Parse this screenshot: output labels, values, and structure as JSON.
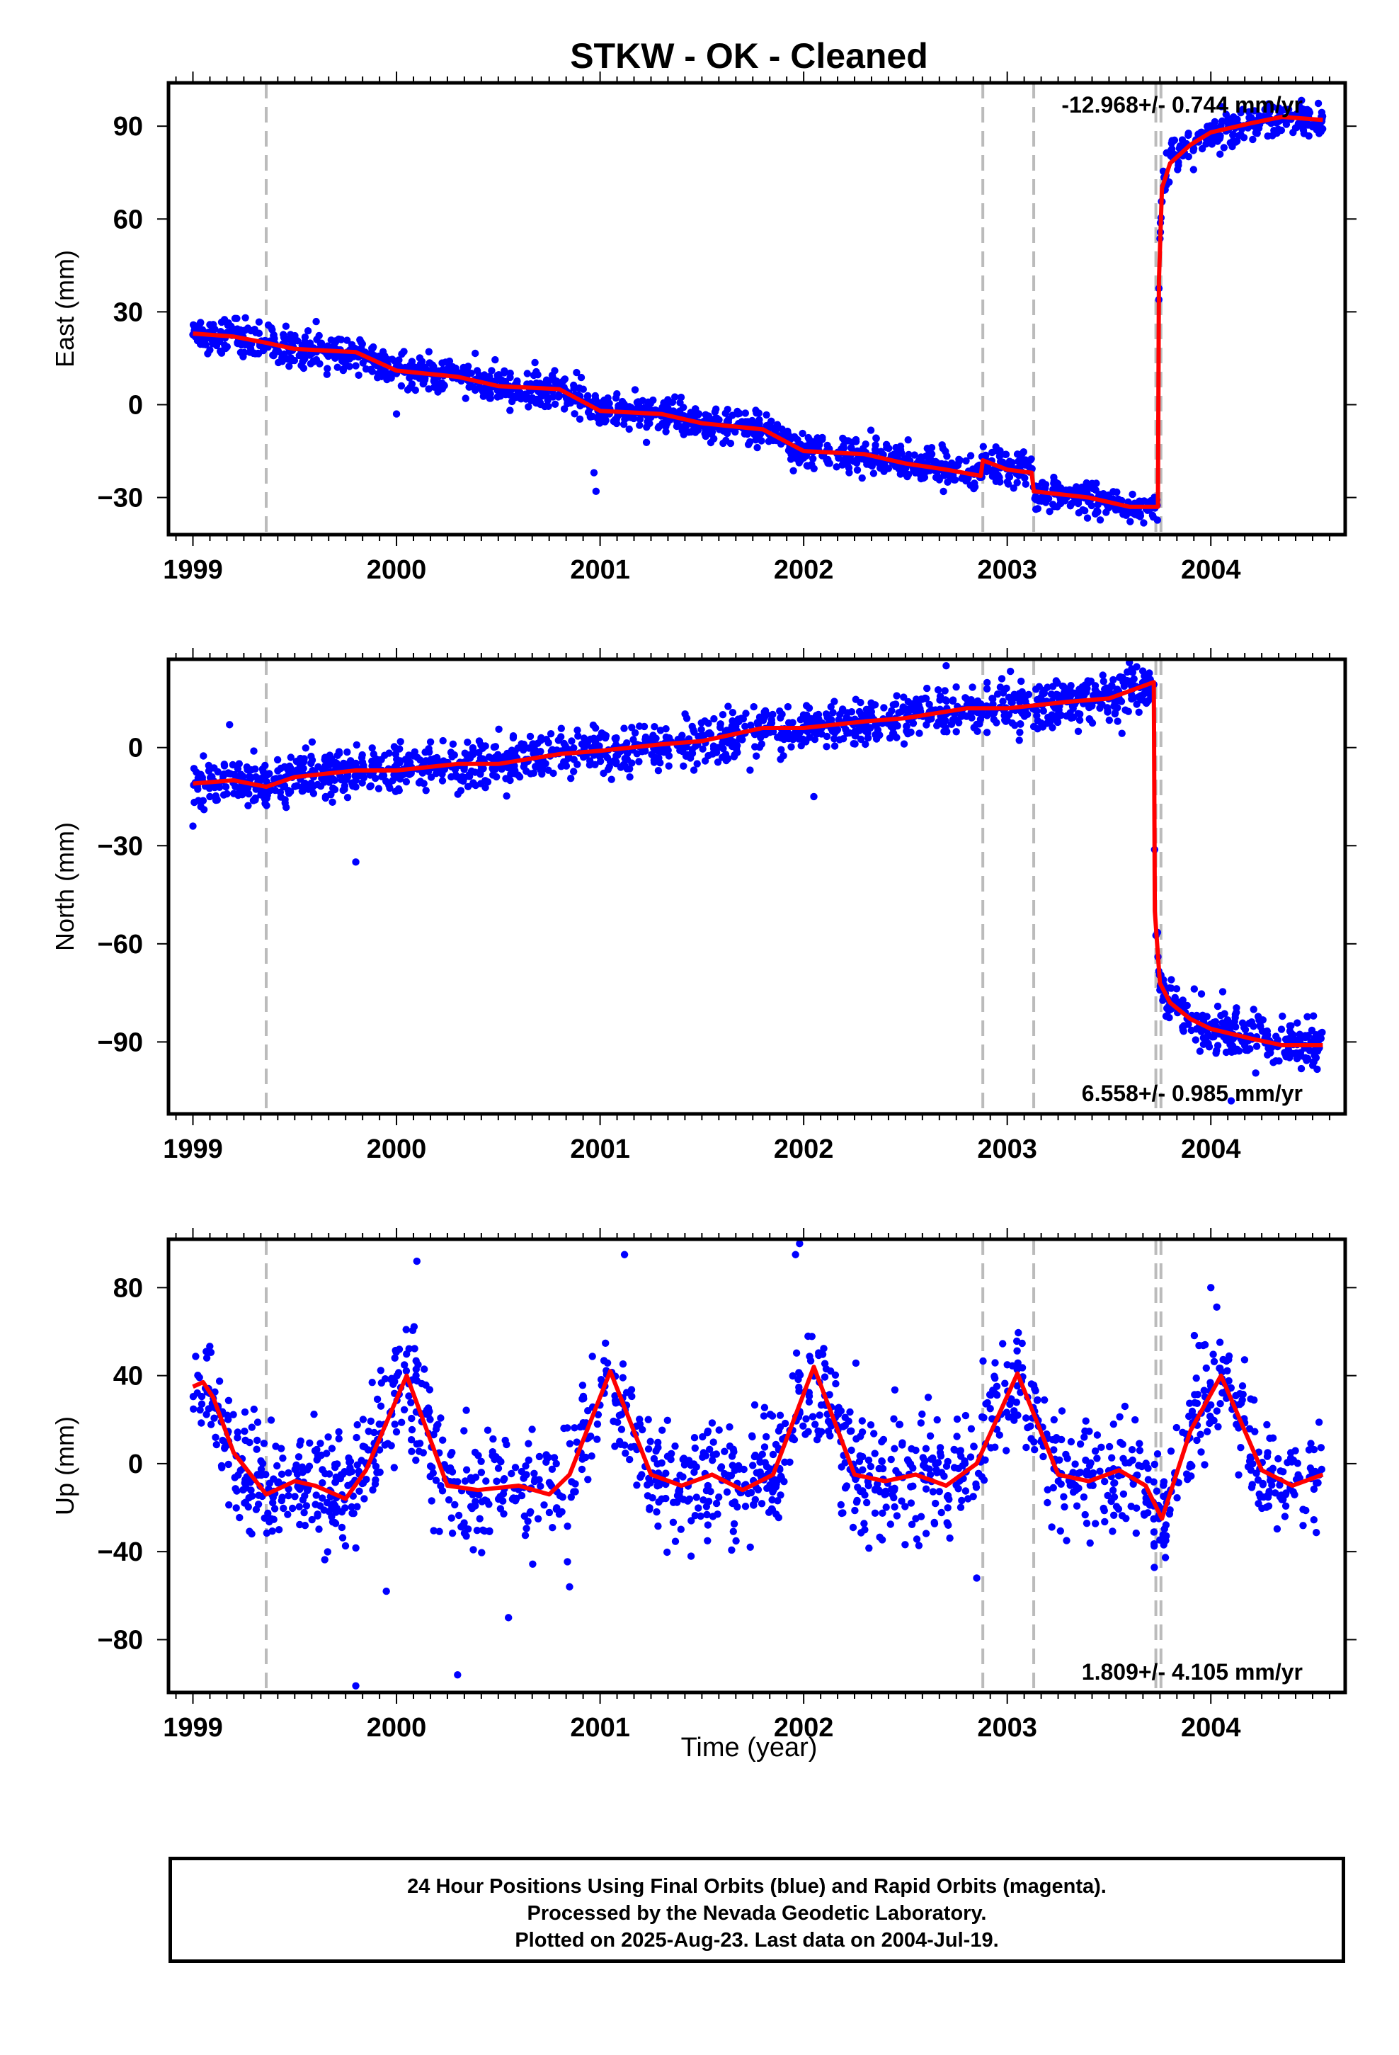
{
  "figure": {
    "title": "STKW  - OK - Cleaned",
    "x_axis_label": "Time (year)",
    "footer_lines": [
      "24 Hour Positions Using Final Orbits (blue) and Rapid Orbits (magenta).",
      "Processed by the Nevada Geodetic Laboratory.",
      "Plotted on 2025-Aug-23. Last data on 2004-Jul-19."
    ]
  },
  "colors": {
    "data_points": "#0000ff",
    "model_line": "#ff0000",
    "event_lines": "#bbbbbb",
    "frame": "#000000"
  },
  "chart_data": [
    {
      "type": "scatter",
      "panel": "east",
      "ylabel": "East (mm)",
      "rate_text": "-12.968+/- 0.744 mm/yr",
      "rate_position": "top-right",
      "xlim": [
        1998.88,
        2004.66
      ],
      "ylim": [
        -42,
        104
      ],
      "xticks": [
        1999,
        2000,
        2001,
        2002,
        2003,
        2004
      ],
      "yticks": [
        -30,
        0,
        30,
        60,
        90
      ],
      "event_lines_x": [
        1999.36,
        2002.88,
        2003.13,
        2003.73,
        2003.755
      ],
      "model_curve": {
        "x": [
          1999.0,
          1999.2,
          1999.36,
          1999.5,
          1999.8,
          2000.0,
          2000.3,
          2000.5,
          2000.8,
          2001.0,
          2001.3,
          2001.5,
          2001.8,
          2002.0,
          2002.3,
          2002.5,
          2002.7,
          2002.87,
          2002.88,
          2003.0,
          2003.12,
          2003.13,
          2003.4,
          2003.6,
          2003.74,
          2003.745,
          2003.76,
          2003.8,
          2003.9,
          2004.0,
          2004.2,
          2004.35,
          2004.55
        ],
        "y": [
          23,
          22,
          20,
          18,
          17,
          11,
          9,
          6,
          5,
          -2,
          -3,
          -6,
          -8,
          -15,
          -16,
          -19,
          -21,
          -23,
          -18,
          -21,
          -22,
          -28,
          -30,
          -33,
          -33,
          40,
          70,
          78,
          84,
          88,
          91,
          93,
          92
        ]
      },
      "point_series": {
        "x_start": 1999.0,
        "x_end": 2004.55,
        "count": 1700,
        "noise_mm": 2.8,
        "outliers": [
          {
            "x": 2000.0,
            "y": -3
          },
          {
            "x": 2000.98,
            "y": -28
          },
          {
            "x": 2000.97,
            "y": -22
          },
          {
            "x": 2002.68,
            "y": -13
          },
          {
            "x": 2003.05,
            "y": -16
          }
        ]
      }
    },
    {
      "type": "scatter",
      "panel": "north",
      "ylabel": "North (mm)",
      "rate_text": "6.558+/- 0.985 mm/yr",
      "rate_position": "bottom-right",
      "xlim": [
        1998.88,
        2004.66
      ],
      "ylim": [
        -112,
        27
      ],
      "xticks": [
        1999,
        2000,
        2001,
        2002,
        2003,
        2004
      ],
      "yticks": [
        -90,
        -60,
        -30,
        0
      ],
      "event_lines_x": [
        1999.36,
        2002.88,
        2003.13,
        2003.73,
        2003.755
      ],
      "model_curve": {
        "x": [
          1999.0,
          1999.2,
          1999.36,
          1999.5,
          1999.8,
          2000.0,
          2000.3,
          2000.5,
          2000.8,
          2001.0,
          2001.3,
          2001.5,
          2001.8,
          2002.0,
          2002.3,
          2002.5,
          2002.8,
          2003.0,
          2003.3,
          2003.5,
          2003.72,
          2003.725,
          2003.75,
          2003.8,
          2003.9,
          2004.0,
          2004.2,
          2004.35,
          2004.55
        ],
        "y": [
          -11,
          -10,
          -12,
          -9,
          -7,
          -7,
          -5,
          -5,
          -2,
          -1,
          1,
          2,
          6,
          6,
          8,
          9,
          12,
          12,
          14,
          15,
          20,
          -50,
          -72,
          -78,
          -83,
          -86,
          -89,
          -91,
          -91
        ]
      },
      "point_series": {
        "x_start": 1999.0,
        "x_end": 2004.55,
        "count": 1700,
        "noise_mm": 3.6,
        "outliers": [
          {
            "x": 1999.8,
            "y": -35
          },
          {
            "x": 1999.0,
            "y": -24
          },
          {
            "x": 1999.18,
            "y": 7
          },
          {
            "x": 2002.05,
            "y": -15
          },
          {
            "x": 2002.7,
            "y": 25
          },
          {
            "x": 2003.6,
            "y": 26
          },
          {
            "x": 2004.1,
            "y": -108
          }
        ]
      }
    },
    {
      "type": "scatter",
      "panel": "up",
      "ylabel": "Up (mm)",
      "rate_text": "1.809+/- 4.105 mm/yr",
      "rate_position": "bottom-right",
      "xlim": [
        1998.88,
        2004.66
      ],
      "ylim": [
        -104,
        102
      ],
      "xticks": [
        1999,
        2000,
        2001,
        2002,
        2003,
        2004
      ],
      "yticks": [
        -80,
        -40,
        0,
        40,
        80
      ],
      "event_lines_x": [
        1999.36,
        2002.88,
        2003.13,
        2003.73,
        2003.755
      ],
      "model_curve": {
        "x": [
          1999.0,
          1999.05,
          1999.1,
          1999.2,
          1999.36,
          1999.5,
          1999.6,
          1999.75,
          1999.85,
          2000.05,
          2000.25,
          2000.4,
          2000.6,
          2000.75,
          2000.85,
          2001.05,
          2001.25,
          2001.4,
          2001.55,
          2001.7,
          2001.85,
          2002.05,
          2002.25,
          2002.4,
          2002.55,
          2002.7,
          2002.85,
          2003.05,
          2003.25,
          2003.4,
          2003.55,
          2003.68,
          2003.76,
          2003.9,
          2004.05,
          2004.25,
          2004.4,
          2004.55
        ],
        "y": [
          35,
          37,
          30,
          5,
          -14,
          -8,
          -10,
          -16,
          -3,
          40,
          -10,
          -12,
          -10,
          -14,
          -5,
          42,
          -5,
          -10,
          -5,
          -12,
          -5,
          44,
          -5,
          -8,
          -5,
          -10,
          0,
          41,
          -5,
          -8,
          -3,
          -10,
          -25,
          15,
          40,
          -3,
          -10,
          -5
        ]
      },
      "point_series": {
        "x_start": 1999.0,
        "x_end": 2004.55,
        "count": 1500,
        "noise_mm": 13,
        "outliers": [
          {
            "x": 1999.8,
            "y": -101
          },
          {
            "x": 2000.3,
            "y": -96
          },
          {
            "x": 2000.55,
            "y": -70
          },
          {
            "x": 2001.98,
            "y": 100
          },
          {
            "x": 2001.96,
            "y": 95
          },
          {
            "x": 2000.1,
            "y": 92
          },
          {
            "x": 2001.12,
            "y": 95
          },
          {
            "x": 2004.0,
            "y": 80
          },
          {
            "x": 1999.95,
            "y": -58
          },
          {
            "x": 2002.85,
            "y": -52
          },
          {
            "x": 2000.85,
            "y": -56
          }
        ]
      }
    }
  ]
}
